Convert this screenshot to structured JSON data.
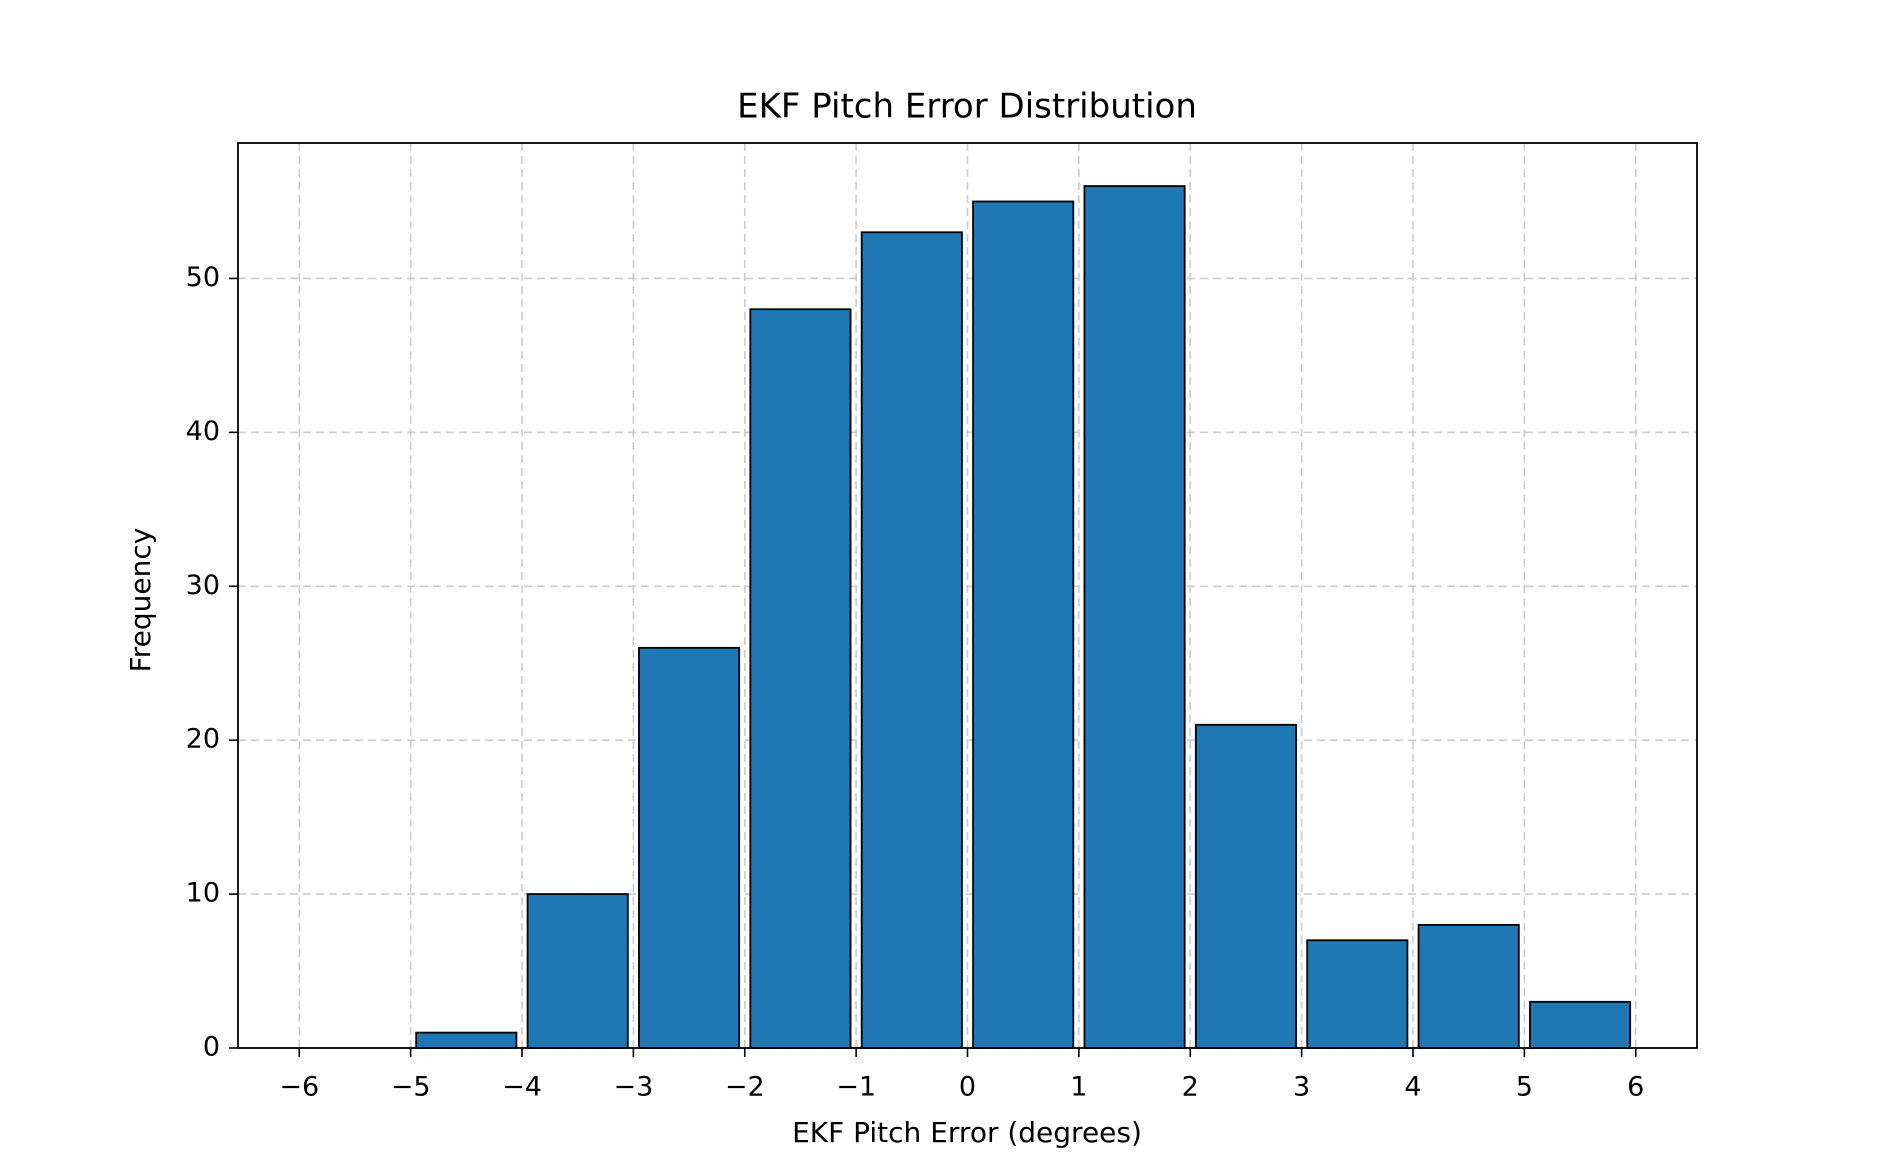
{
  "chart_data": {
    "type": "bar",
    "title": "EKF Pitch Error Distribution",
    "xlabel": "EKF Pitch Error (degrees)",
    "ylabel": "Frequency",
    "bins": [
      {
        "x0": -6,
        "x1": -5,
        "value": 0
      },
      {
        "x0": -5,
        "x1": -4,
        "value": 1
      },
      {
        "x0": -4,
        "x1": -3,
        "value": 10
      },
      {
        "x0": -3,
        "x1": -2,
        "value": 26
      },
      {
        "x0": -2,
        "x1": -1,
        "value": 48
      },
      {
        "x0": -1,
        "x1": 0,
        "value": 53
      },
      {
        "x0": 0,
        "x1": 1,
        "value": 55
      },
      {
        "x0": 1,
        "x1": 2,
        "value": 56
      },
      {
        "x0": 2,
        "x1": 3,
        "value": 21
      },
      {
        "x0": 3,
        "x1": 4,
        "value": 7
      },
      {
        "x0": 4,
        "x1": 5,
        "value": 8
      },
      {
        "x0": 5,
        "x1": 6,
        "value": 3
      }
    ],
    "xlim": [
      -6.55,
      6.55
    ],
    "ylim": [
      0,
      58.8
    ],
    "xticks": [
      -6,
      -5,
      -4,
      -3,
      -2,
      -1,
      0,
      1,
      2,
      3,
      4,
      5,
      6
    ],
    "xtick_labels": [
      "−6",
      "−5",
      "−4",
      "−3",
      "−2",
      "−1",
      "0",
      "1",
      "2",
      "3",
      "4",
      "5",
      "6"
    ],
    "yticks": [
      0,
      10,
      20,
      30,
      40,
      50
    ],
    "ytick_labels": [
      "0",
      "10",
      "20",
      "30",
      "40",
      "50"
    ],
    "grid": true,
    "bar_color": "#1f77b4",
    "edge_color": "#000000",
    "grid_color": "#cccccc"
  }
}
